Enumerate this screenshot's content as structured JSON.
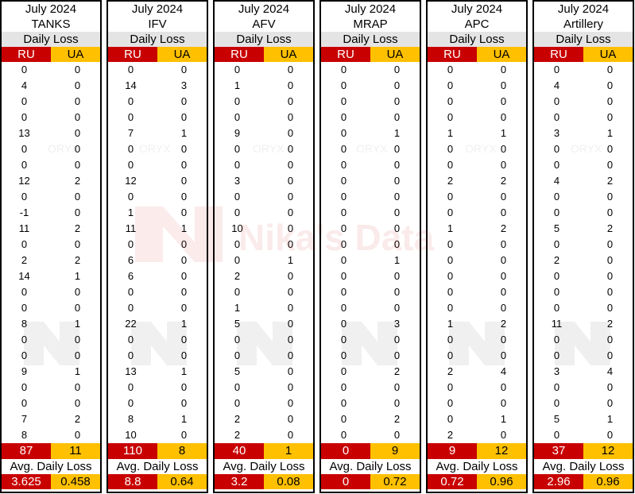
{
  "watermark": {
    "brand": "Nika's Data",
    "partner": "ORYX",
    "color": "#c80000"
  },
  "colors": {
    "ru": "#c80000",
    "ua": "#ffc000"
  },
  "chart_data": {
    "type": "table",
    "period": "July 2024",
    "row_label": "Daily Loss",
    "avg_label": "Avg. Daily Loss",
    "ru_label": "RU",
    "ua_label": "UA",
    "panels": [
      {
        "category": "TANKS",
        "ru": [
          "0",
          "4",
          "0",
          "0",
          "13",
          "0",
          "0",
          "12",
          "0",
          "-1",
          "11",
          "0",
          "2",
          "14",
          "0",
          "0",
          "8",
          "0",
          "0",
          "9",
          "0",
          "0",
          "7",
          "8"
        ],
        "ua": [
          "0",
          "0",
          "0",
          "0",
          "0",
          "0",
          "0",
          "2",
          "0",
          "0",
          "2",
          "0",
          "2",
          "1",
          "0",
          "0",
          "1",
          "0",
          "0",
          "1",
          "0",
          "0",
          "2",
          "0"
        ],
        "total_ru": "87",
        "total_ua": "11",
        "avg_ru": "3.625",
        "avg_ua": "0.458"
      },
      {
        "category": "IFV",
        "ru": [
          "0",
          "14",
          "0",
          "0",
          "7",
          "0",
          "0",
          "12",
          "0",
          "1",
          "11",
          "0",
          "6",
          "6",
          "0",
          "0",
          "22",
          "0",
          "0",
          "13",
          "0",
          "0",
          "8",
          "10"
        ],
        "ua": [
          "0",
          "3",
          "0",
          "0",
          "1",
          "0",
          "0",
          "0",
          "0",
          "0",
          "1",
          "0",
          "0",
          "0",
          "0",
          "0",
          "1",
          "0",
          "0",
          "1",
          "0",
          "0",
          "1",
          "0"
        ],
        "total_ru": "110",
        "total_ua": "8",
        "avg_ru": "8.8",
        "avg_ua": "0.64"
      },
      {
        "category": "AFV",
        "ru": [
          "0",
          "1",
          "0",
          "0",
          "9",
          "0",
          "0",
          "3",
          "0",
          "0",
          "10",
          "0",
          "0",
          "2",
          "0",
          "1",
          "5",
          "0",
          "0",
          "5",
          "0",
          "0",
          "2",
          "2"
        ],
        "ua": [
          "0",
          "0",
          "0",
          "0",
          "0",
          "0",
          "0",
          "0",
          "0",
          "0",
          "0",
          "0",
          "1",
          "0",
          "0",
          "0",
          "0",
          "0",
          "0",
          "0",
          "0",
          "0",
          "0",
          "0"
        ],
        "total_ru": "40",
        "total_ua": "1",
        "avg_ru": "3.2",
        "avg_ua": "0.08"
      },
      {
        "category": "MRAP",
        "ru": [
          "0",
          "0",
          "0",
          "0",
          "0",
          "0",
          "0",
          "0",
          "0",
          "0",
          "0",
          "0",
          "0",
          "0",
          "0",
          "0",
          "0",
          "0",
          "0",
          "0",
          "0",
          "0",
          "0",
          "0"
        ],
        "ua": [
          "0",
          "0",
          "0",
          "0",
          "1",
          "0",
          "0",
          "0",
          "0",
          "0",
          "0",
          "0",
          "1",
          "0",
          "0",
          "0",
          "3",
          "0",
          "0",
          "2",
          "0",
          "0",
          "2",
          "0"
        ],
        "total_ru": "0",
        "total_ua": "9",
        "avg_ru": "0",
        "avg_ua": "0.72"
      },
      {
        "category": "APC",
        "ru": [
          "0",
          "0",
          "0",
          "0",
          "1",
          "0",
          "0",
          "2",
          "0",
          "0",
          "1",
          "0",
          "0",
          "0",
          "0",
          "0",
          "1",
          "0",
          "0",
          "2",
          "0",
          "0",
          "0",
          "2"
        ],
        "ua": [
          "0",
          "0",
          "0",
          "0",
          "1",
          "0",
          "0",
          "2",
          "0",
          "0",
          "2",
          "0",
          "0",
          "0",
          "0",
          "0",
          "2",
          "0",
          "0",
          "4",
          "0",
          "0",
          "1",
          "0"
        ],
        "total_ru": "9",
        "total_ua": "12",
        "avg_ru": "0.72",
        "avg_ua": "0.96"
      },
      {
        "category": "Artillery",
        "ru": [
          "0",
          "4",
          "0",
          "0",
          "3",
          "0",
          "0",
          "4",
          "0",
          "0",
          "5",
          "0",
          "2",
          "0",
          "0",
          "0",
          "11",
          "0",
          "0",
          "3",
          "0",
          "0",
          "5",
          "0"
        ],
        "ua": [
          "0",
          "0",
          "0",
          "0",
          "1",
          "0",
          "0",
          "2",
          "0",
          "0",
          "2",
          "0",
          "0",
          "0",
          "0",
          "0",
          "2",
          "0",
          "0",
          "4",
          "0",
          "0",
          "1",
          "0"
        ],
        "total_ru": "37",
        "total_ua": "12",
        "avg_ru": "2.96",
        "avg_ua": "0.96"
      }
    ]
  }
}
